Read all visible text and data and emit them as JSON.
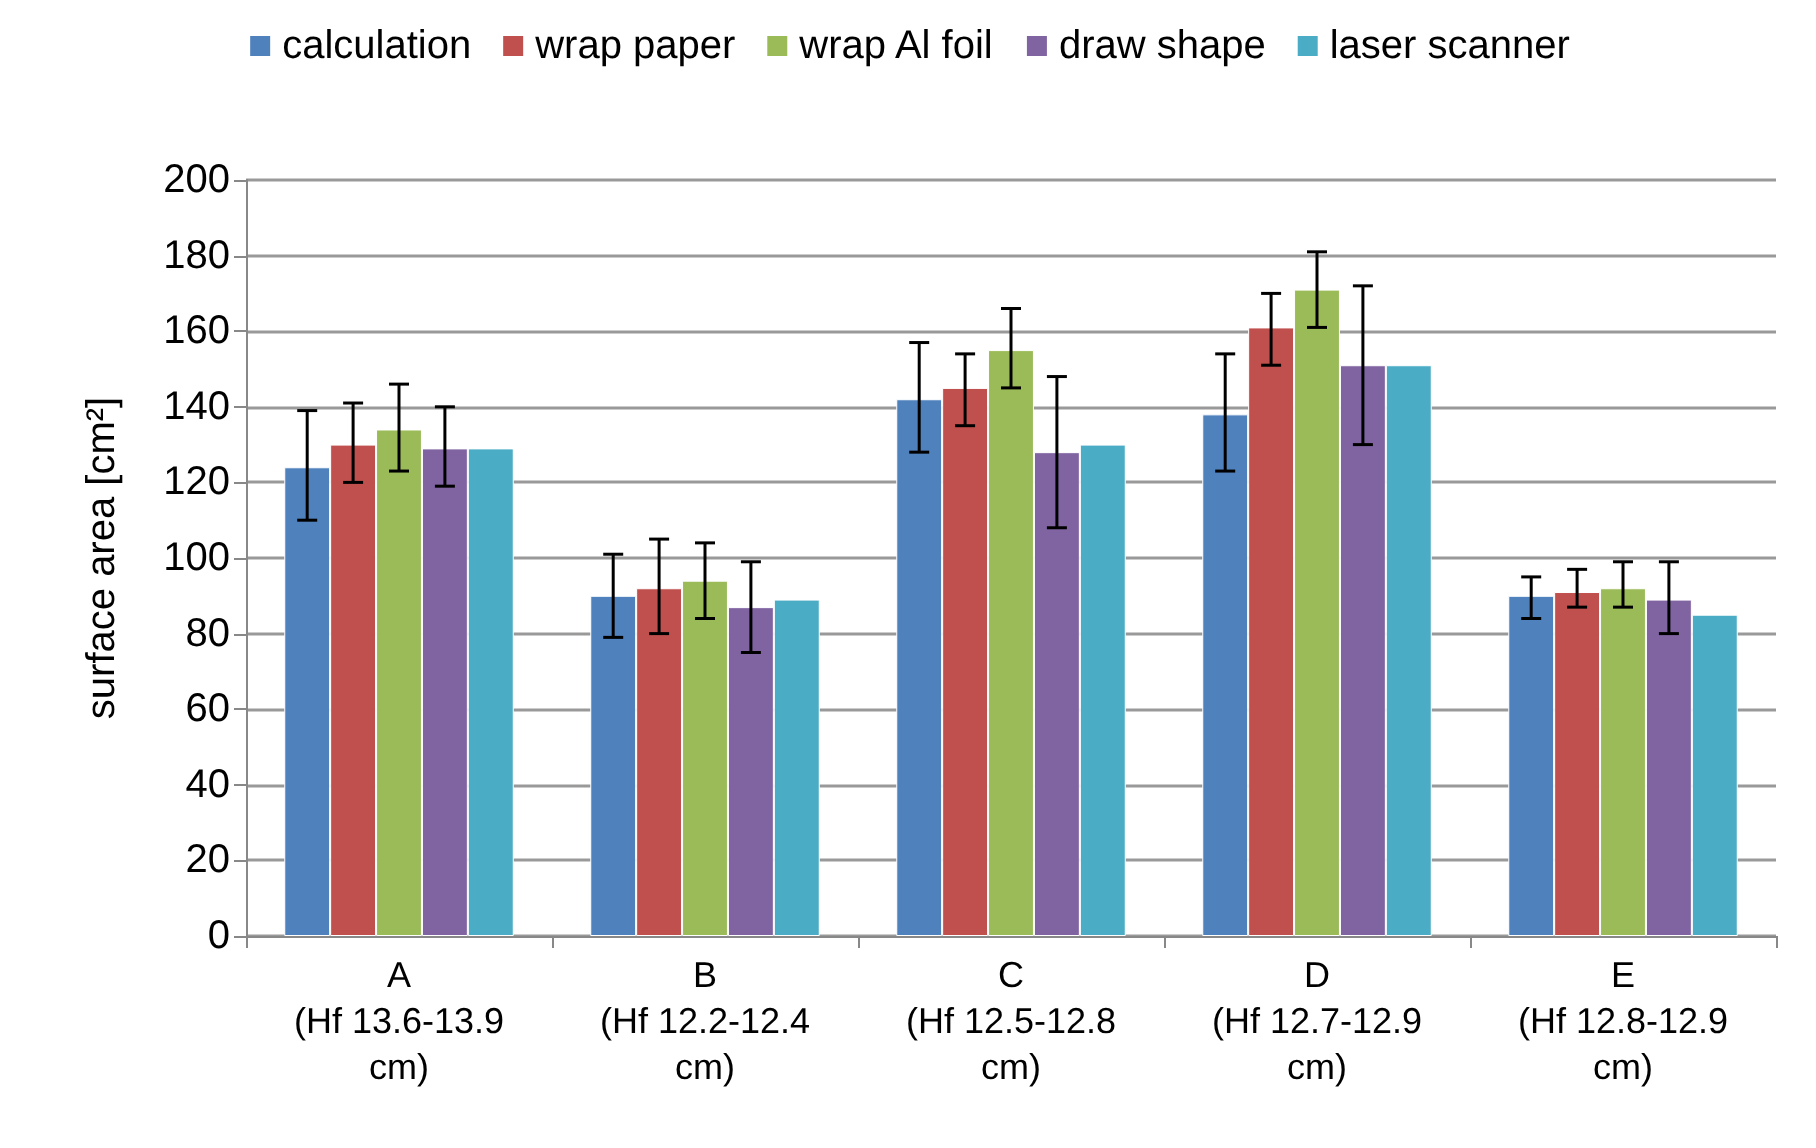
{
  "chart_data": {
    "type": "bar",
    "ylabel": "surface area [cm²]",
    "categories": [
      "A\n(Hf 13.6-13.9\ncm)",
      "B\n(Hf 12.2-12.4\ncm)",
      "C\n(Hf 12.5-12.8\ncm)",
      "D\n(Hf 12.7-12.9\ncm)",
      "E\n(Hf 12.8-12.9\ncm)"
    ],
    "series": [
      {
        "name": "calculation",
        "color": "#4f81bd",
        "values": [
          124,
          90,
          142,
          138,
          90
        ],
        "errors": [
          [
            110,
            139
          ],
          [
            79,
            101
          ],
          [
            128,
            157
          ],
          [
            123,
            154
          ],
          [
            84,
            95
          ]
        ]
      },
      {
        "name": "wrap paper",
        "color": "#c0504d",
        "values": [
          130,
          92,
          145,
          161,
          91
        ],
        "errors": [
          [
            120,
            141
          ],
          [
            80,
            105
          ],
          [
            135,
            154
          ],
          [
            151,
            170
          ],
          [
            87,
            97
          ]
        ]
      },
      {
        "name": "wrap Al foil",
        "color": "#9bbb59",
        "values": [
          134,
          94,
          155,
          171,
          92
        ],
        "errors": [
          [
            123,
            146
          ],
          [
            84,
            104
          ],
          [
            145,
            166
          ],
          [
            161,
            181
          ],
          [
            87,
            99
          ]
        ]
      },
      {
        "name": "draw shape",
        "color": "#8064a2",
        "values": [
          129,
          87,
          128,
          151,
          89
        ],
        "errors": [
          [
            119,
            140
          ],
          [
            75,
            99
          ],
          [
            108,
            148
          ],
          [
            130,
            172
          ],
          [
            80,
            99
          ]
        ]
      },
      {
        "name": "laser scanner",
        "color": "#4bacc6",
        "values": [
          129,
          89,
          130,
          151,
          85
        ]
      }
    ],
    "ylim": [
      0,
      200
    ],
    "yticks": [
      0,
      20,
      40,
      60,
      80,
      100,
      120,
      140,
      160,
      180,
      200
    ],
    "grid": "y",
    "legend": "top"
  }
}
